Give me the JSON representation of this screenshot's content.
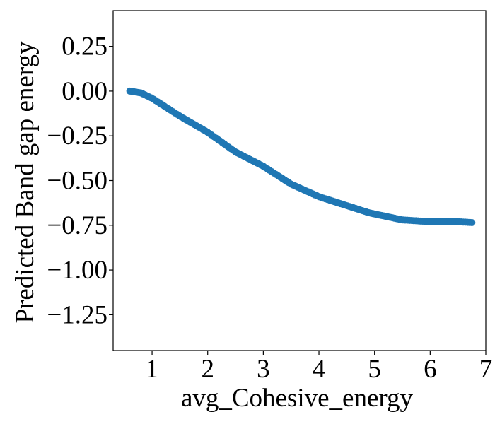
{
  "chart_data": {
    "type": "scatter",
    "title": "",
    "xlabel": "avg_Cohesive_energy",
    "ylabel": "Predicted Band gap energy",
    "xlim": [
      0.3,
      7.0
    ],
    "ylim": [
      -1.45,
      0.45
    ],
    "xticks": [
      1,
      2,
      3,
      4,
      5,
      6,
      7
    ],
    "xtick_labels": [
      "1",
      "2",
      "3",
      "4",
      "5",
      "6",
      "7"
    ],
    "yticks": [
      0.25,
      0.0,
      -0.25,
      -0.5,
      -0.75,
      -1.0,
      -1.25
    ],
    "ytick_labels": [
      "0.25",
      "0.00",
      "−0.25",
      "−0.50",
      "−0.75",
      "−1.00",
      "−1.25"
    ],
    "grid": false,
    "marker_color": "#1f77b4",
    "curve": {
      "x_start": 0.6,
      "x_end": 6.75,
      "n_points": 160,
      "control_x": [
        0.6,
        0.8,
        1.0,
        1.5,
        2.0,
        2.5,
        3.0,
        3.5,
        4.0,
        4.5,
        4.9,
        5.2,
        5.5,
        6.0,
        6.5,
        6.75
      ],
      "control_y": [
        0.0,
        -0.01,
        -0.04,
        -0.14,
        -0.23,
        -0.34,
        -0.42,
        -0.52,
        -0.59,
        -0.64,
        -0.68,
        -0.7,
        -0.72,
        -0.73,
        -0.73,
        -0.735
      ]
    }
  }
}
